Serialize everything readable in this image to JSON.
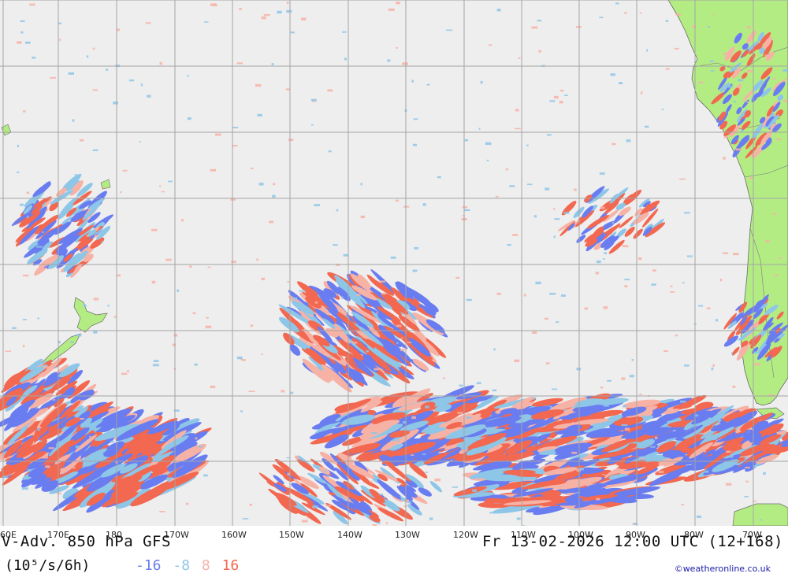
{
  "title": {
    "left": "V-Adv. 850 hPa  GFS",
    "right": "Fr 13-02-2026 12:00 UTC (12+168)"
  },
  "units": "(10⁵/s/6h)",
  "legend": [
    {
      "value": "-16",
      "color": "#6a7df0"
    },
    {
      "value": "-8",
      "color": "#8ec6e8"
    },
    {
      "value": "8",
      "color": "#f7b2a6"
    },
    {
      "value": "16",
      "color": "#f26850"
    }
  ],
  "longitudes": [
    "60E",
    "170E",
    "180",
    "170W",
    "160W",
    "150W",
    "140W",
    "130W",
    "120W",
    "110W",
    "100W",
    "90W",
    "80W",
    "70W"
  ],
  "credit": "©weatheronline.co.uk",
  "colors": {
    "ocean": "#eeeeee",
    "land": "#b4ec84",
    "grid": "#a4a4a4",
    "strong_negative": "#6a7df0",
    "weak_negative": "#8ec6e8",
    "weak_positive": "#f7b2a6",
    "strong_positive": "#f26850"
  }
}
